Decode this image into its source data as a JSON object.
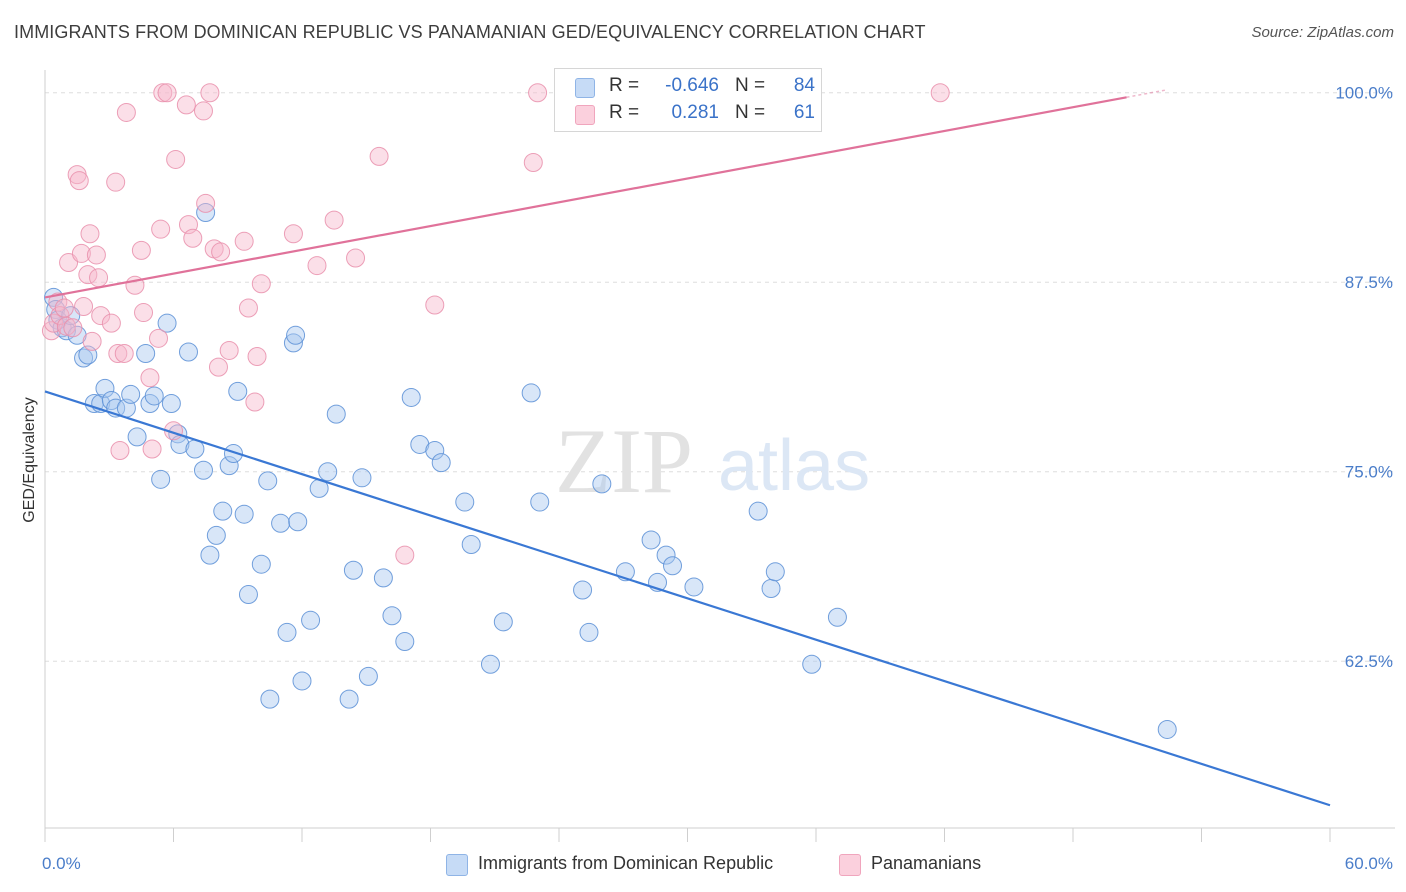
{
  "title": "IMMIGRANTS FROM DOMINICAN REPUBLIC VS PANAMANIAN GED/EQUIVALENCY CORRELATION CHART",
  "source": "Source: ZipAtlas.com",
  "watermark": {
    "zip": "ZIP",
    "atlas": "atlas"
  },
  "legend": {
    "r_label": "R =",
    "n_label": "N =",
    "rows": [
      {
        "r": "-0.646",
        "n": "84",
        "color": "#a8c8f0"
      },
      {
        "r": "0.281",
        "n": "61",
        "color": "#f7b8cc"
      }
    ]
  },
  "chart_data": {
    "type": "scatter",
    "ylabel": "GED/Equivalency",
    "xlim": [
      0,
      60
    ],
    "ylim": [
      51.5,
      101.5
    ],
    "x_tick_labels": [
      "0.0%",
      "60.0%"
    ],
    "y_ticks": [
      {
        "value": 100,
        "label": "100.0%"
      },
      {
        "value": 87.5,
        "label": "87.5%"
      },
      {
        "value": 75,
        "label": "75.0%"
      },
      {
        "value": 62.5,
        "label": "62.5%"
      }
    ],
    "grid": "horizontal-dashed",
    "series": [
      {
        "name": "Immigrants from Dominican Republic",
        "color": "#5b8fd6",
        "fill": "#a8c8f0",
        "trend": {
          "x0": 0,
          "y0": 80.3,
          "x1": 60,
          "y1": 53.0,
          "color": "#3a78d4"
        },
        "points": [
          [
            0.4,
            86.5
          ],
          [
            0.5,
            85.7
          ],
          [
            0.6,
            85.0
          ],
          [
            0.8,
            84.5
          ],
          [
            1.0,
            84.3
          ],
          [
            1.2,
            85.3
          ],
          [
            1.5,
            84.0
          ],
          [
            1.8,
            82.5
          ],
          [
            2.0,
            82.7
          ],
          [
            2.3,
            79.5
          ],
          [
            2.6,
            79.5
          ],
          [
            2.8,
            80.5
          ],
          [
            3.1,
            79.7
          ],
          [
            3.3,
            79.2
          ],
          [
            3.8,
            79.2
          ],
          [
            4.0,
            80.1
          ],
          [
            4.3,
            77.3
          ],
          [
            4.7,
            82.8
          ],
          [
            4.9,
            79.5
          ],
          [
            5.1,
            80.0
          ],
          [
            5.4,
            74.5
          ],
          [
            5.7,
            84.8
          ],
          [
            5.9,
            79.5
          ],
          [
            6.2,
            77.5
          ],
          [
            6.3,
            76.8
          ],
          [
            6.7,
            82.9
          ],
          [
            7.0,
            76.5
          ],
          [
            7.4,
            75.1
          ],
          [
            7.5,
            92.1
          ],
          [
            7.7,
            69.5
          ],
          [
            8.0,
            70.8
          ],
          [
            8.3,
            72.4
          ],
          [
            8.6,
            75.4
          ],
          [
            8.8,
            76.2
          ],
          [
            9.0,
            80.3
          ],
          [
            9.3,
            72.2
          ],
          [
            9.5,
            66.9
          ],
          [
            10.1,
            68.9
          ],
          [
            10.4,
            74.4
          ],
          [
            10.5,
            60.0
          ],
          [
            11.0,
            71.6
          ],
          [
            11.3,
            64.4
          ],
          [
            11.6,
            83.5
          ],
          [
            11.7,
            84.0
          ],
          [
            11.8,
            71.7
          ],
          [
            12.0,
            61.2
          ],
          [
            12.4,
            65.2
          ],
          [
            12.8,
            73.9
          ],
          [
            13.2,
            75.0
          ],
          [
            13.6,
            78.8
          ],
          [
            14.2,
            60.0
          ],
          [
            14.4,
            68.5
          ],
          [
            14.8,
            74.6
          ],
          [
            15.1,
            61.5
          ],
          [
            15.8,
            68.0
          ],
          [
            16.2,
            65.5
          ],
          [
            16.8,
            63.8
          ],
          [
            17.1,
            79.9
          ],
          [
            17.5,
            76.8
          ],
          [
            18.2,
            76.4
          ],
          [
            18.5,
            75.6
          ],
          [
            19.6,
            73.0
          ],
          [
            19.9,
            70.2
          ],
          [
            20.8,
            62.3
          ],
          [
            21.4,
            65.1
          ],
          [
            22.7,
            80.2
          ],
          [
            23.1,
            73.0
          ],
          [
            25.1,
            67.2
          ],
          [
            25.4,
            64.4
          ],
          [
            26.0,
            74.2
          ],
          [
            27.1,
            68.4
          ],
          [
            28.3,
            70.5
          ],
          [
            28.6,
            67.7
          ],
          [
            29.0,
            69.5
          ],
          [
            29.3,
            68.8
          ],
          [
            30.3,
            67.4
          ],
          [
            33.3,
            72.4
          ],
          [
            33.9,
            67.3
          ],
          [
            34.1,
            68.4
          ],
          [
            35.8,
            62.3
          ],
          [
            37.0,
            65.4
          ],
          [
            52.4,
            58.0
          ]
        ]
      },
      {
        "name": "Panamanians",
        "color": "#e98fab",
        "fill": "#f7b8cc",
        "trend": {
          "x0": 0,
          "y0": 86.5,
          "x1": 50.5,
          "y1": 99.7,
          "color": "#e0729a"
        },
        "points": [
          [
            0.3,
            84.3
          ],
          [
            0.4,
            84.8
          ],
          [
            0.6,
            86.2
          ],
          [
            0.7,
            85.3
          ],
          [
            0.9,
            85.8
          ],
          [
            1.0,
            84.6
          ],
          [
            1.1,
            88.8
          ],
          [
            1.3,
            84.5
          ],
          [
            1.5,
            94.6
          ],
          [
            1.6,
            94.2
          ],
          [
            1.7,
            89.4
          ],
          [
            1.8,
            85.9
          ],
          [
            2.0,
            88.0
          ],
          [
            2.1,
            90.7
          ],
          [
            2.2,
            83.6
          ],
          [
            2.4,
            89.3
          ],
          [
            2.5,
            87.8
          ],
          [
            2.6,
            85.3
          ],
          [
            3.1,
            84.8
          ],
          [
            3.3,
            94.1
          ],
          [
            3.4,
            82.8
          ],
          [
            3.5,
            76.4
          ],
          [
            3.7,
            82.8
          ],
          [
            3.8,
            98.7
          ],
          [
            4.2,
            87.3
          ],
          [
            4.5,
            89.6
          ],
          [
            4.6,
            85.5
          ],
          [
            4.9,
            81.2
          ],
          [
            5.0,
            76.5
          ],
          [
            5.3,
            83.8
          ],
          [
            5.4,
            91.0
          ],
          [
            5.5,
            100.0
          ],
          [
            5.7,
            100.0
          ],
          [
            6.0,
            77.7
          ],
          [
            6.1,
            95.6
          ],
          [
            6.6,
            99.2
          ],
          [
            6.7,
            91.3
          ],
          [
            6.9,
            90.4
          ],
          [
            7.4,
            98.8
          ],
          [
            7.5,
            92.7
          ],
          [
            7.7,
            100.0
          ],
          [
            7.9,
            89.7
          ],
          [
            8.1,
            81.9
          ],
          [
            8.2,
            89.5
          ],
          [
            8.6,
            83.0
          ],
          [
            9.3,
            90.2
          ],
          [
            9.5,
            85.8
          ],
          [
            9.8,
            79.6
          ],
          [
            9.9,
            82.6
          ],
          [
            10.1,
            87.4
          ],
          [
            11.6,
            90.7
          ],
          [
            12.7,
            88.6
          ],
          [
            13.5,
            91.6
          ],
          [
            14.5,
            89.1
          ],
          [
            15.6,
            95.8
          ],
          [
            16.8,
            69.5
          ],
          [
            18.2,
            86.0
          ],
          [
            22.8,
            95.4
          ],
          [
            23.0,
            100.0
          ],
          [
            41.8,
            100.0
          ]
        ]
      }
    ]
  },
  "bottom_legend": [
    {
      "label": "Immigrants from Dominican Republic",
      "color": "#a8c8f0"
    },
    {
      "label": "Panamanians",
      "color": "#f7b8cc"
    }
  ]
}
